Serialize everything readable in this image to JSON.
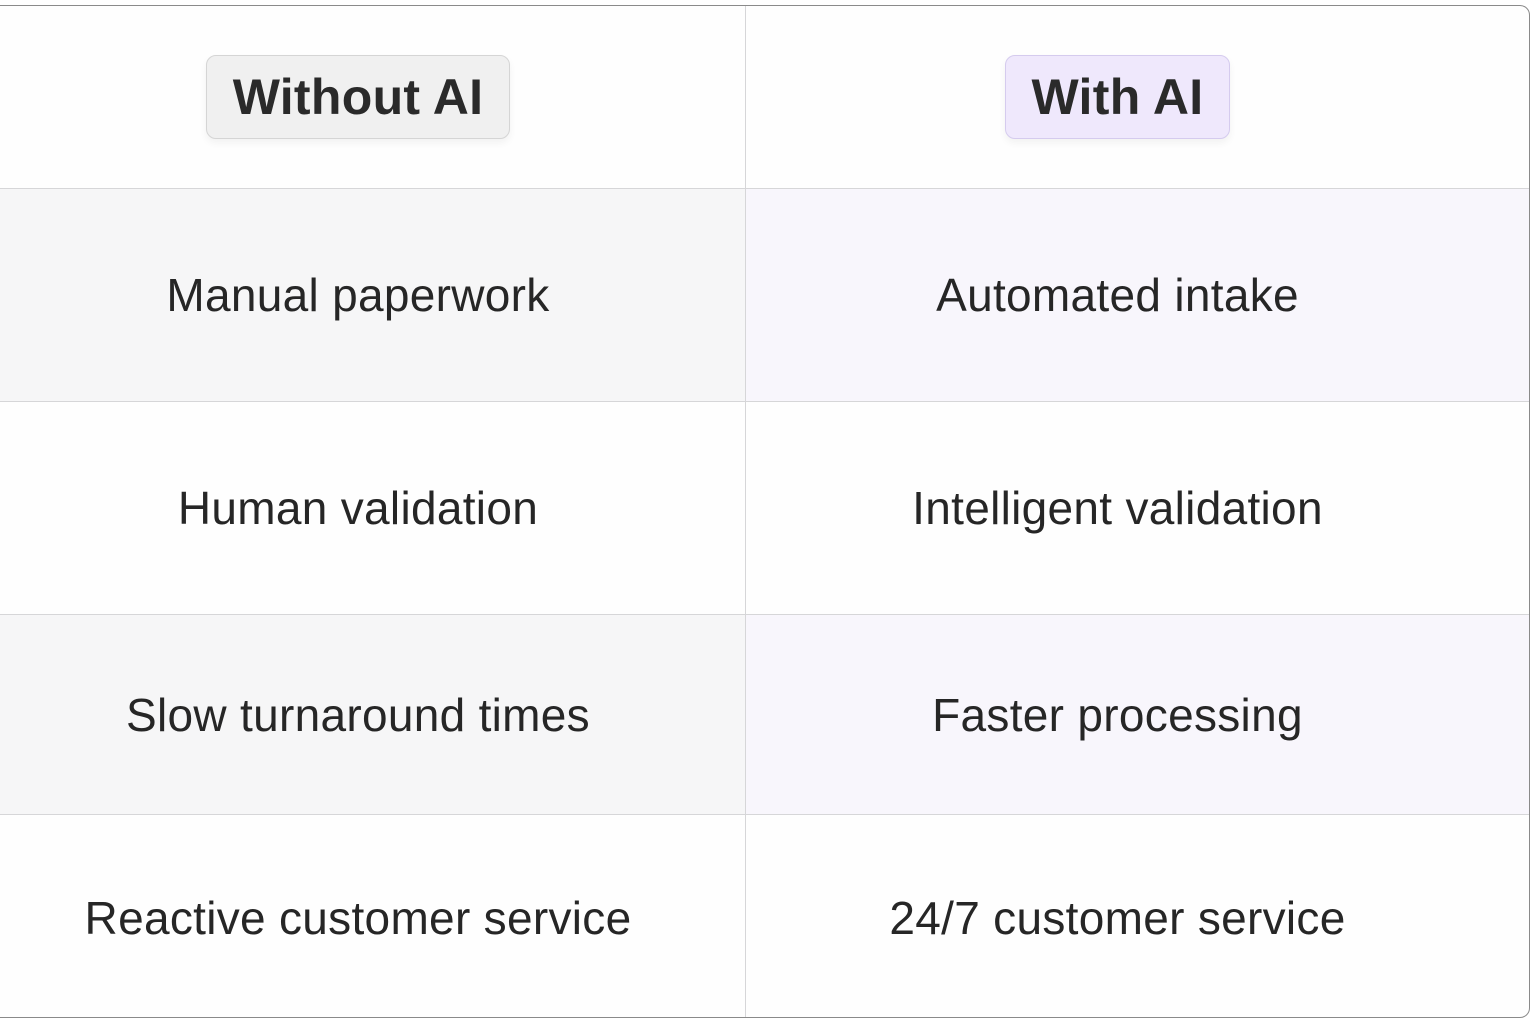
{
  "header": {
    "without_label": "Without AI",
    "with_label": "With AI"
  },
  "rows": [
    {
      "without": "Manual paperwork",
      "with": "Automated intake"
    },
    {
      "without": "Human validation",
      "with": "Intelligent validation"
    },
    {
      "without": "Slow turnaround times",
      "with": "Faster processing"
    },
    {
      "without": "Reactive customer service",
      "with": "24/7 customer service"
    }
  ],
  "colors": {
    "without_badge": "#f0f0f0",
    "with_badge": "#efe8fc",
    "with_row_tint": "#f8f6fc"
  }
}
